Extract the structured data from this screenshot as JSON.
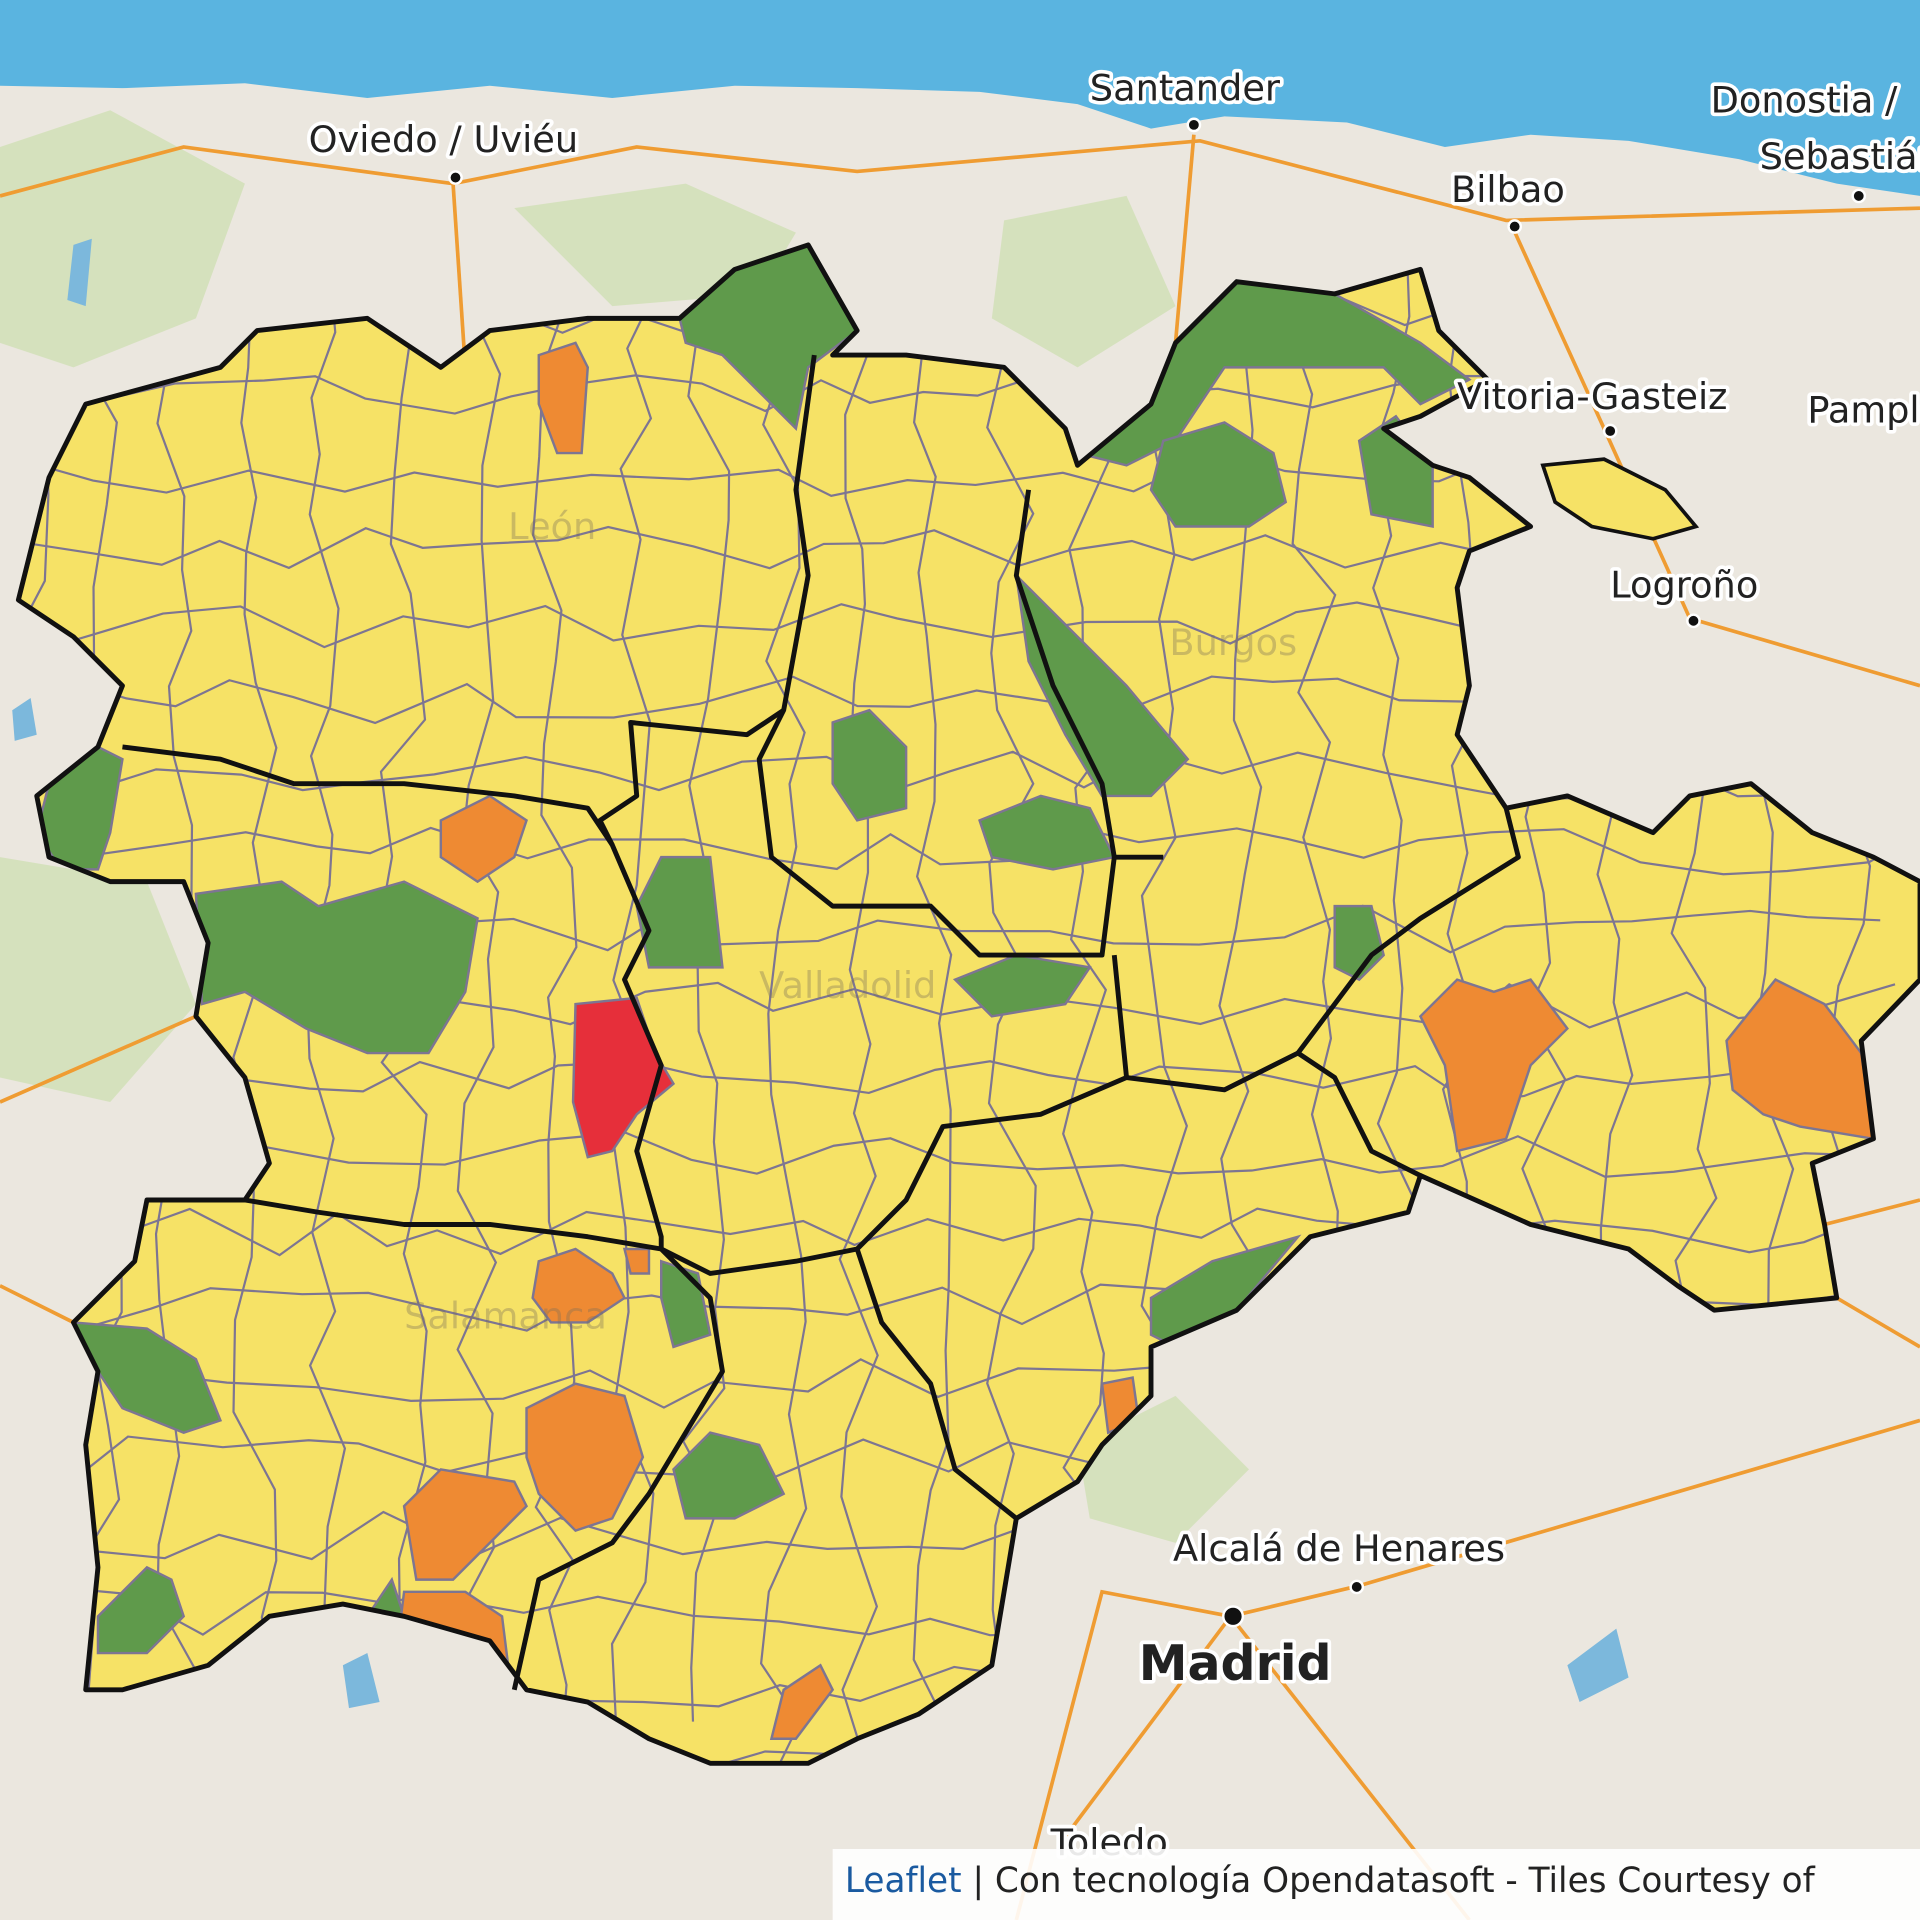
{
  "places": [
    "Santander",
    "Oviedo / Uviéu",
    "Donostia /",
    "Sebastián",
    "Bilbao",
    "Vitoria-Gasteiz",
    "Pamplona",
    "Logroño",
    "Burgos",
    "Valladolid",
    "Salamanca",
    "Alcalá de Henares",
    "Madrid",
    "Toledo",
    "León"
  ],
  "attribution": {
    "link": "Leaflet",
    "separator": "|",
    "text": "Con tecnología Opendatasoft - Tiles Courtesy of"
  }
}
